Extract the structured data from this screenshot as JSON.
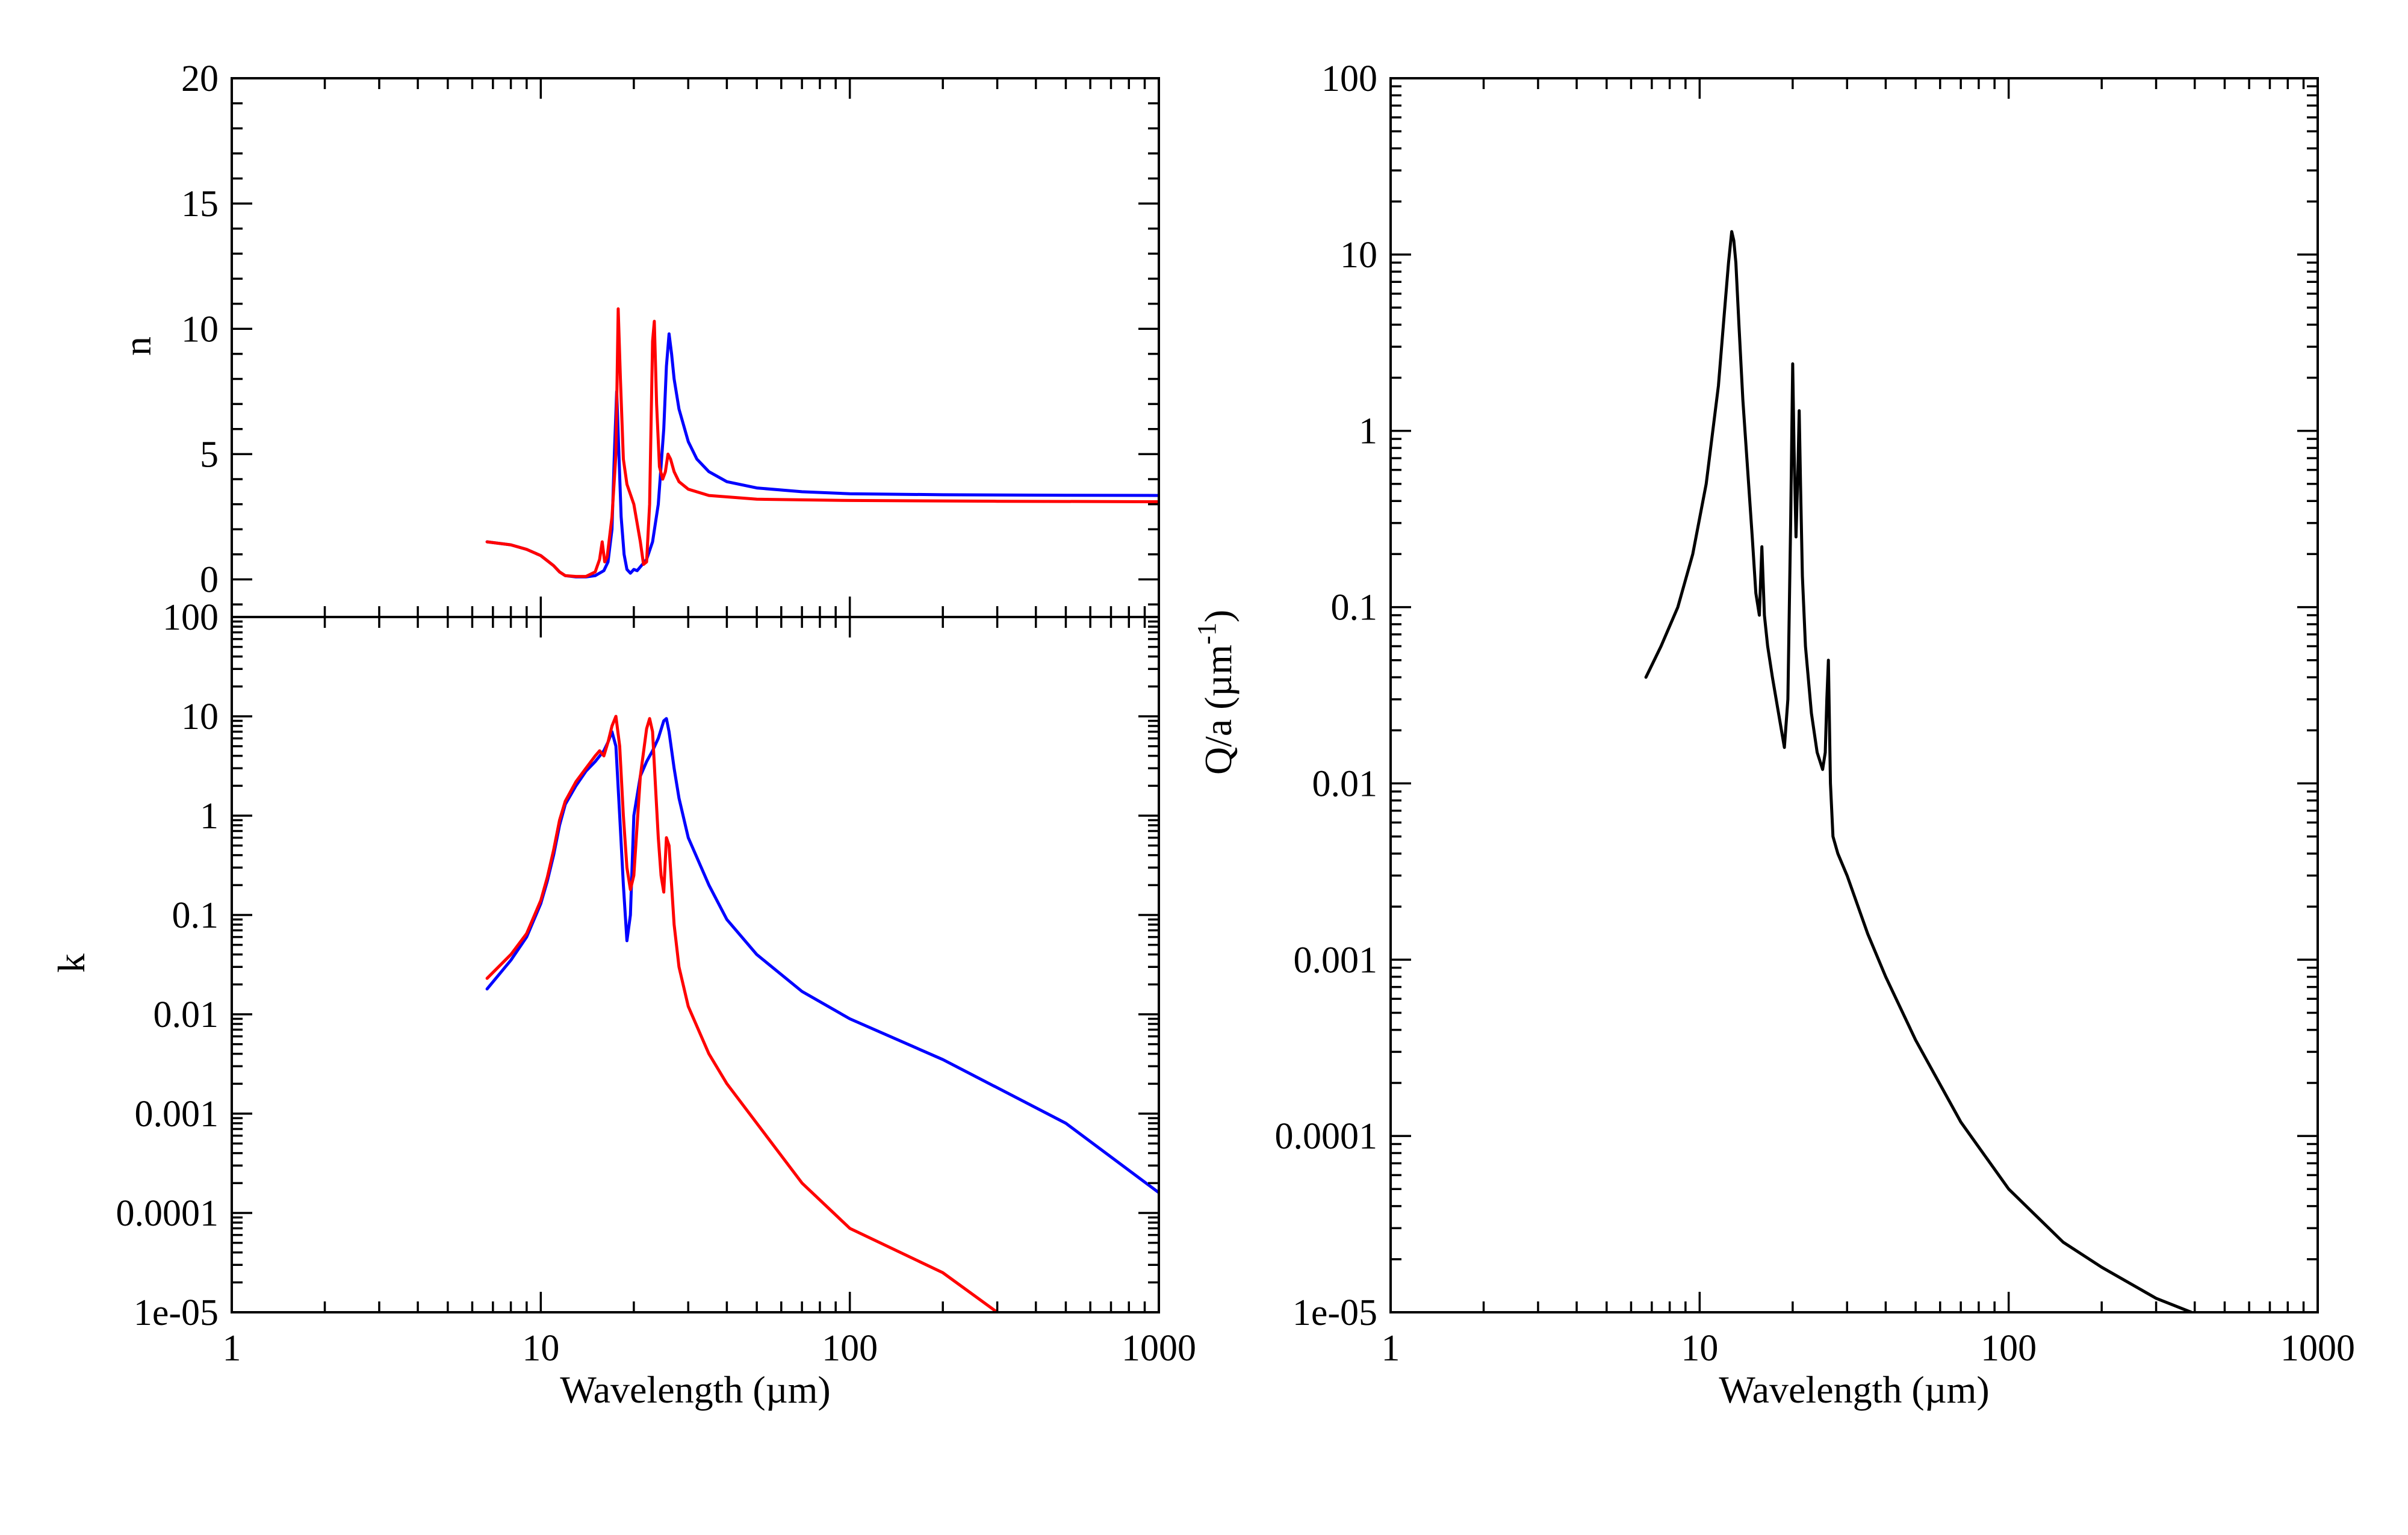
{
  "chart_data": [
    {
      "id": "n-panel",
      "type": "line",
      "xlabel": "",
      "ylabel": "n",
      "xscale": "log",
      "yscale": "linear",
      "xlim": [
        1,
        1000
      ],
      "ylim": [
        -1.5,
        20
      ],
      "xticks": [],
      "yticks": [
        "0",
        "5",
        "10",
        "15",
        "20"
      ],
      "ytick_values": [
        0,
        5,
        10,
        15,
        20
      ],
      "series": [
        {
          "color": "#0000ff",
          "x": [
            6.7,
            8,
            9,
            10,
            11,
            11.5,
            12,
            13,
            14,
            15,
            16,
            16.5,
            17,
            17.3,
            17.6,
            17.9,
            18.2,
            18.6,
            19.0,
            19.5,
            20,
            20.5,
            21,
            22,
            23,
            24,
            25,
            25.5,
            26,
            26.5,
            27,
            28,
            30,
            32,
            35,
            40,
            50,
            70,
            100,
            200,
            500,
            1000
          ],
          "y": [
            1.5,
            1.38,
            1.2,
            0.95,
            0.55,
            0.3,
            0.15,
            0.1,
            0.1,
            0.15,
            0.35,
            0.7,
            2.0,
            5.0,
            7.5,
            5.0,
            2.5,
            1.0,
            0.4,
            0.25,
            0.4,
            0.35,
            0.5,
            0.8,
            1.5,
            3.0,
            6.0,
            8.5,
            9.8,
            9.0,
            8.0,
            6.8,
            5.5,
            4.8,
            4.3,
            3.9,
            3.65,
            3.5,
            3.42,
            3.38,
            3.36,
            3.35
          ]
        },
        {
          "color": "#ff0000",
          "x": [
            6.7,
            8,
            9,
            10,
            11,
            11.5,
            12,
            13,
            14,
            15,
            15.5,
            15.8,
            16.1,
            16.4,
            17,
            17.5,
            17.8,
            18.1,
            18.5,
            19,
            20,
            21,
            21.5,
            22,
            22.5,
            23,
            23.3,
            23.7,
            24.2,
            24.8,
            25.3,
            25.8,
            26.3,
            27,
            28,
            30,
            35,
            50,
            100,
            300,
            1000
          ],
          "y": [
            1.5,
            1.38,
            1.2,
            0.95,
            0.55,
            0.3,
            0.15,
            0.12,
            0.12,
            0.3,
            0.8,
            1.5,
            0.7,
            0.9,
            2.5,
            5.0,
            10.8,
            8.0,
            4.8,
            3.8,
            3.0,
            1.5,
            0.6,
            0.7,
            3.0,
            9.5,
            10.3,
            7.0,
            4.5,
            4.0,
            4.3,
            5.0,
            4.8,
            4.3,
            3.9,
            3.6,
            3.35,
            3.2,
            3.15,
            3.12,
            3.1
          ]
        }
      ]
    },
    {
      "id": "k-panel",
      "type": "line",
      "xlabel": "Wavelength (µm)",
      "ylabel": "k",
      "xscale": "log",
      "yscale": "log",
      "xlim": [
        1,
        1000
      ],
      "ylim": [
        1e-05,
        100
      ],
      "xticks": [
        "1",
        "10",
        "100",
        "1000"
      ],
      "xtick_values": [
        1,
        10,
        100,
        1000
      ],
      "yticks": [
        "1e-05",
        "0.0001",
        "0.001",
        "0.01",
        "0.1",
        "1",
        "10",
        "100"
      ],
      "ytick_values": [
        1e-05,
        0.0001,
        0.001,
        0.01,
        0.1,
        1,
        10,
        100
      ],
      "series": [
        {
          "color": "#0000ff",
          "x": [
            6.7,
            8,
            9,
            10,
            10.5,
            11,
            11.5,
            12,
            13,
            14,
            15,
            16,
            16.5,
            17,
            17.5,
            18,
            18.5,
            19,
            19.5,
            20,
            21,
            22,
            23,
            24,
            25,
            25.5,
            26,
            27,
            28,
            30,
            35,
            40,
            50,
            70,
            100,
            200,
            500,
            1000
          ],
          "y": [
            0.018,
            0.035,
            0.06,
            0.13,
            0.22,
            0.4,
            0.8,
            1.3,
            2.0,
            2.8,
            3.5,
            4.5,
            5.5,
            7.0,
            5.0,
            1.0,
            0.2,
            0.055,
            0.1,
            1.0,
            2.5,
            3.5,
            4.5,
            6.0,
            9.0,
            9.5,
            7.0,
            3.0,
            1.5,
            0.6,
            0.2,
            0.09,
            0.04,
            0.017,
            0.009,
            0.0035,
            0.0008,
            0.00016
          ]
        },
        {
          "color": "#ff0000",
          "x": [
            6.7,
            8,
            9,
            10,
            10.5,
            11,
            11.5,
            12,
            13,
            14,
            15,
            15.5,
            16,
            16.5,
            17,
            17.5,
            18,
            18.5,
            19,
            19.5,
            20,
            21,
            22,
            22.5,
            23,
            23.5,
            24,
            24.5,
            25,
            25.5,
            26,
            26.5,
            27,
            28,
            30,
            35,
            40,
            50,
            70,
            100,
            200,
            300
          ],
          "y": [
            0.023,
            0.04,
            0.065,
            0.14,
            0.24,
            0.45,
            0.9,
            1.4,
            2.2,
            3.0,
            4.0,
            4.5,
            4.0,
            5.5,
            8.0,
            10.0,
            5.0,
            1.0,
            0.3,
            0.18,
            0.25,
            2.5,
            7.5,
            9.5,
            7.0,
            2.0,
            0.6,
            0.25,
            0.17,
            0.6,
            0.5,
            0.2,
            0.08,
            0.03,
            0.012,
            0.004,
            0.002,
            0.0008,
            0.0002,
            7e-05,
            2.5e-05,
            1e-05
          ]
        }
      ]
    },
    {
      "id": "qa-panel",
      "type": "line",
      "xlabel": "Wavelength (µm)",
      "ylabel": "Q/a (µm",
      "ylabel_sup": "-1",
      "ylabel_end": ")",
      "xscale": "log",
      "yscale": "log",
      "xlim": [
        1,
        1000
      ],
      "ylim": [
        1e-05,
        100
      ],
      "xticks": [
        "1",
        "10",
        "100",
        "1000"
      ],
      "xtick_values": [
        1,
        10,
        100,
        1000
      ],
      "yticks": [
        "1e-05",
        "0.0001",
        "0.001",
        "0.01",
        "0.1",
        "1",
        "10",
        "100"
      ],
      "ytick_values": [
        1e-05,
        0.0001,
        0.001,
        0.01,
        0.1,
        1,
        10,
        100
      ],
      "series": [
        {
          "color": "#000000",
          "x": [
            6.7,
            7.5,
            8.5,
            9.5,
            10.5,
            11.5,
            12.0,
            12.4,
            12.7,
            12.9,
            13.1,
            13.4,
            13.8,
            14.3,
            14.8,
            15.2,
            15.6,
            15.9,
            16.2,
            16.6,
            17.2,
            18,
            18.8,
            19.3,
            19.7,
            20.0,
            20.2,
            20.5,
            20.8,
            21.0,
            21.2,
            21.5,
            22,
            23,
            24,
            25,
            25.5,
            25.8,
            26.1,
            26.5,
            27,
            28,
            30,
            35,
            40,
            50,
            70,
            100,
            150,
            200,
            300,
            390
          ],
          "y": [
            0.04,
            0.06,
            0.1,
            0.2,
            0.5,
            1.8,
            4.5,
            9.0,
            13.5,
            12.0,
            9.0,
            4.0,
            1.5,
            0.6,
            0.25,
            0.12,
            0.09,
            0.22,
            0.09,
            0.06,
            0.04,
            0.025,
            0.016,
            0.03,
            0.3,
            2.4,
            0.8,
            0.25,
            0.6,
            1.3,
            0.5,
            0.15,
            0.06,
            0.025,
            0.015,
            0.012,
            0.015,
            0.03,
            0.05,
            0.01,
            0.005,
            0.004,
            0.003,
            0.0014,
            0.0008,
            0.00035,
            0.00012,
            5e-05,
            2.5e-05,
            1.8e-05,
            1.2e-05,
            1e-05
          ]
        }
      ]
    }
  ]
}
